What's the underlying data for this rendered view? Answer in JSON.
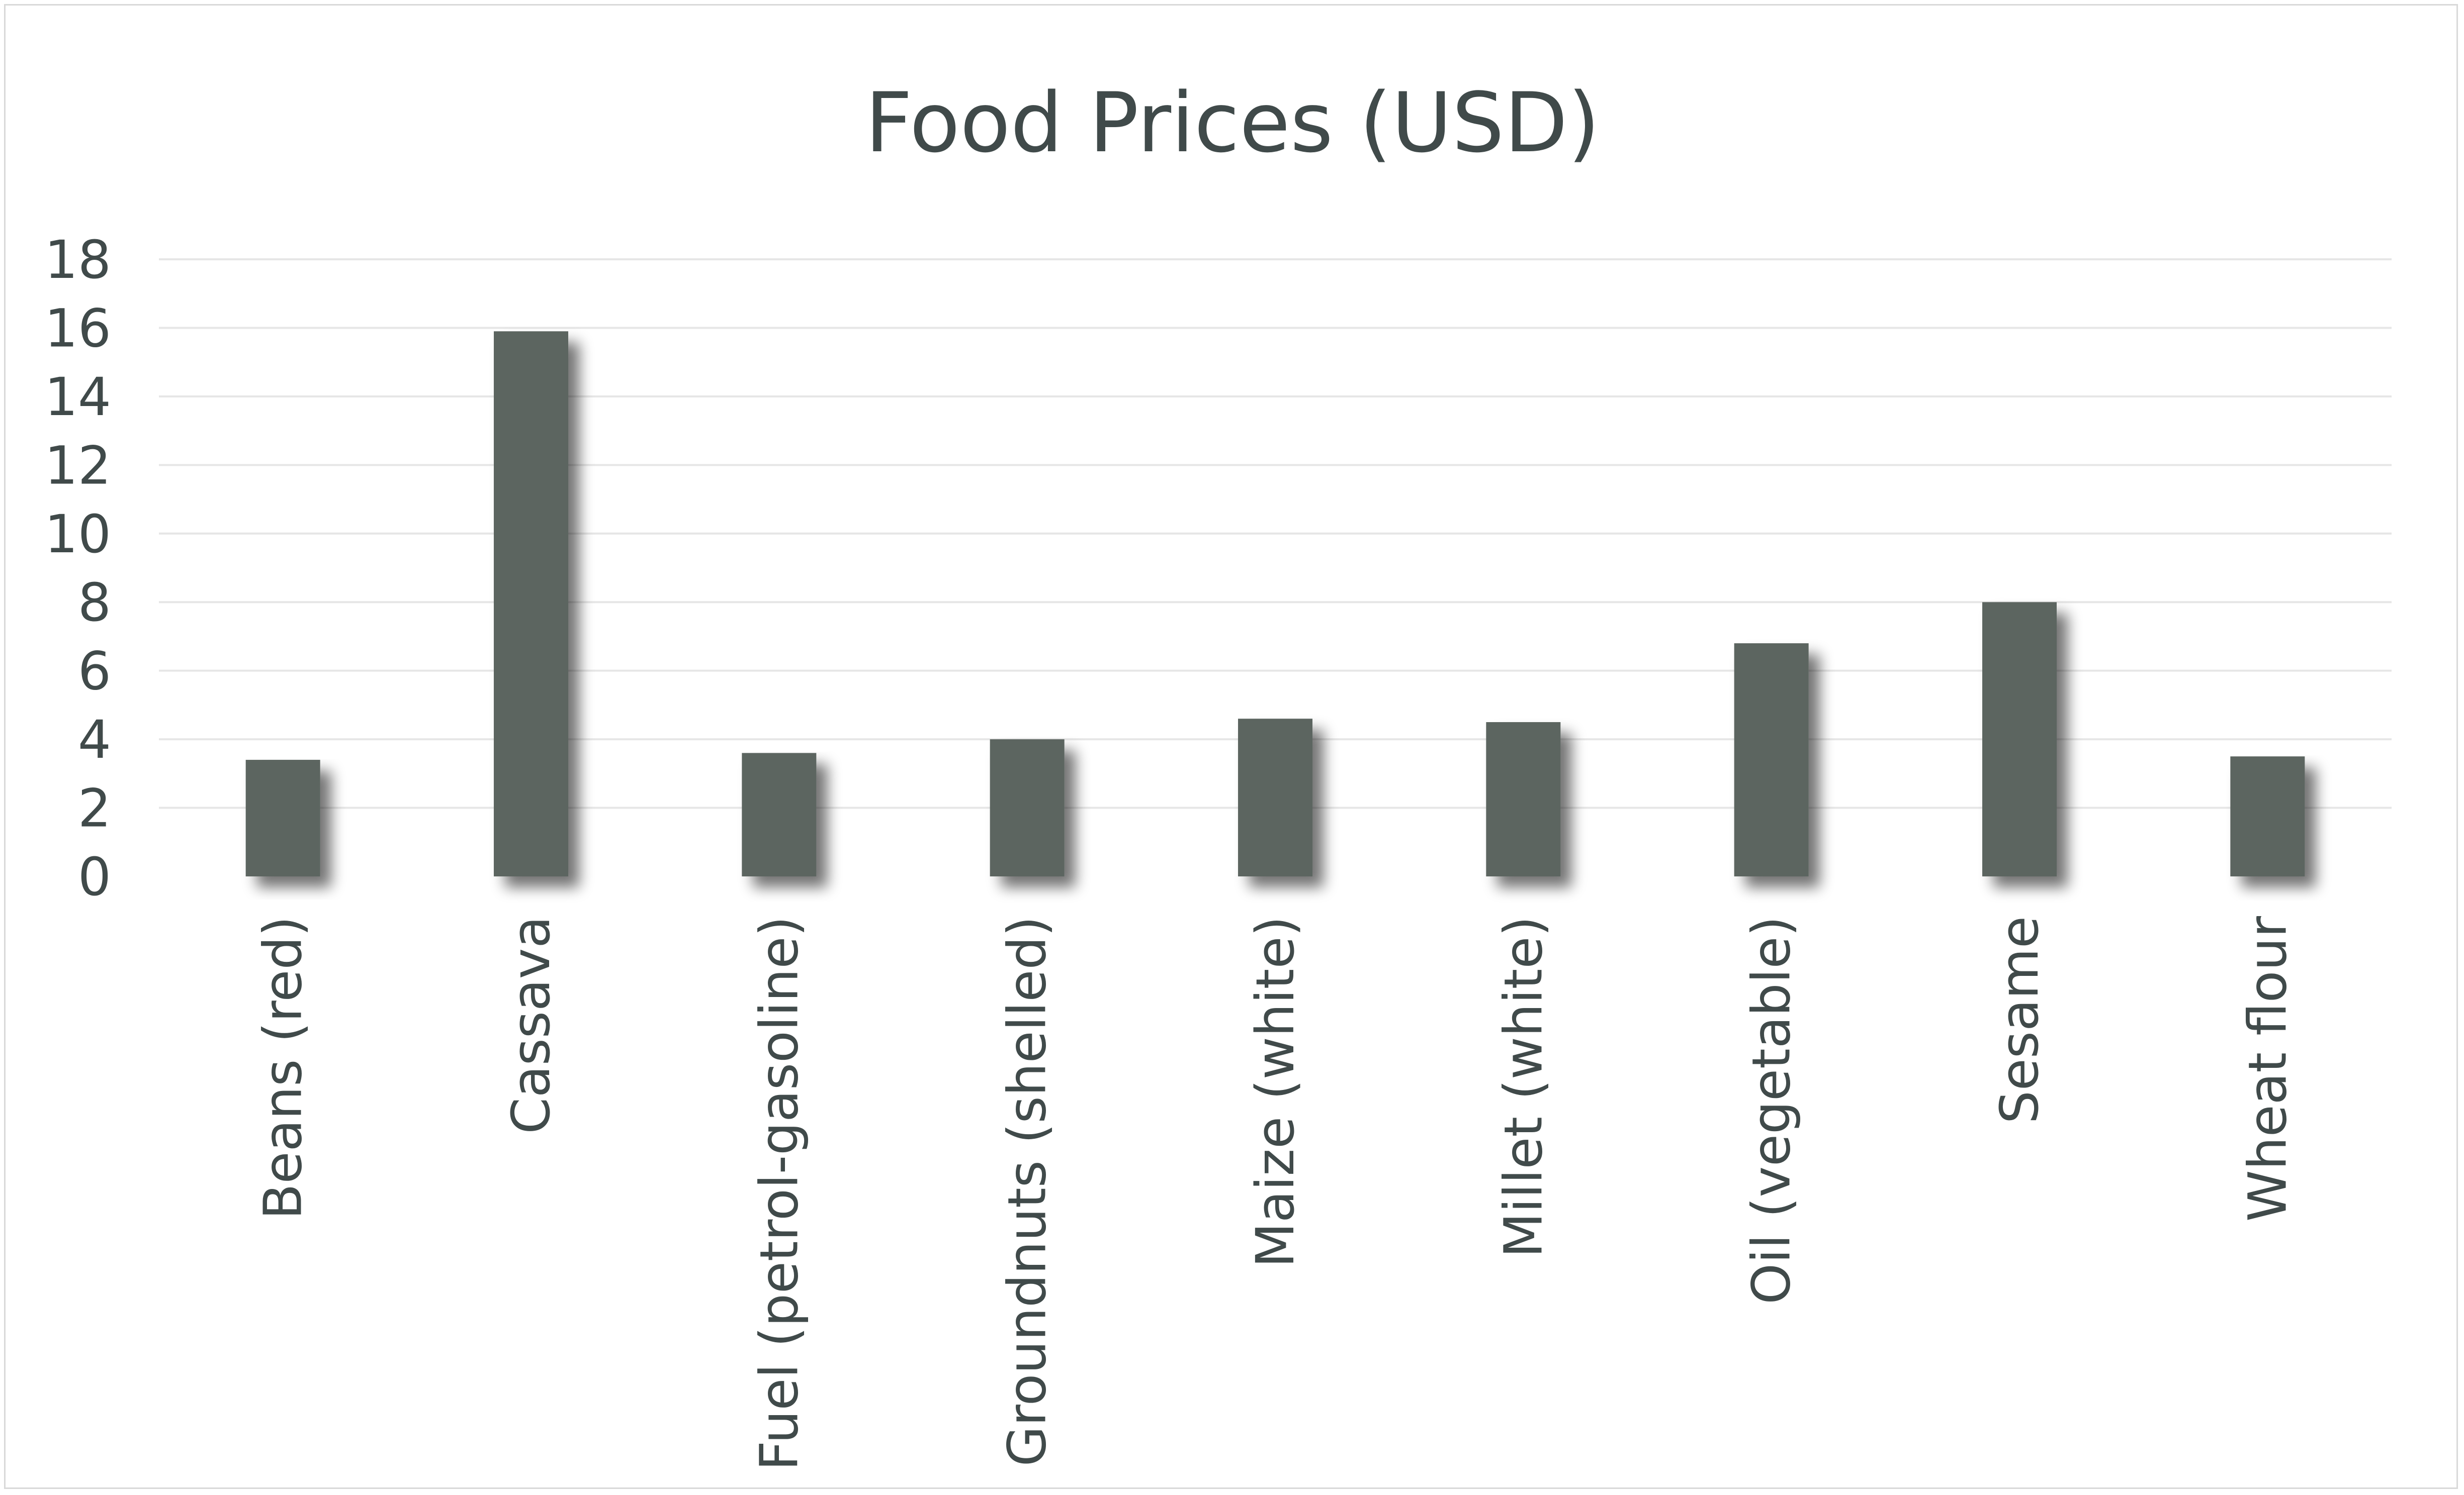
{
  "chart_data": {
    "type": "bar",
    "title": "Food Prices (USD)",
    "xlabel": "",
    "ylabel": "",
    "categories": [
      "Beans (red)",
      "Cassava",
      "Fuel (petrol-gasoline)",
      "Groundnuts (shelled)",
      "Maize (white)",
      "Millet (white)",
      "Oil (vegetable)",
      "Sesame",
      "Wheat flour"
    ],
    "values": [
      3.4,
      15.9,
      3.6,
      4.0,
      4.6,
      4.5,
      6.8,
      8.0,
      3.5
    ],
    "ylim": [
      0,
      18
    ],
    "yticks": [
      "0",
      "2",
      "4",
      "6",
      "8",
      "10",
      "12",
      "14",
      "16",
      "18"
    ],
    "grid": true,
    "legend": "none",
    "bar_color": "#5c6560",
    "grid_color": "#e6e6e6",
    "text_color": "#404a4a"
  }
}
